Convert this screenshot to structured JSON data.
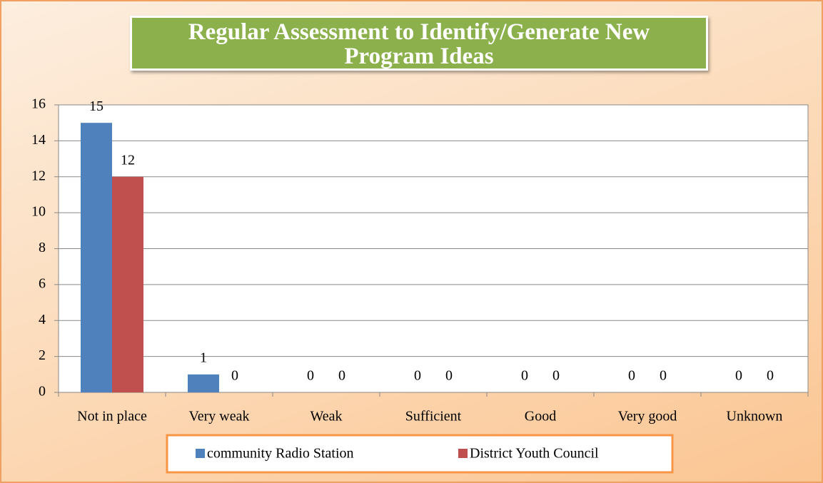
{
  "chart_data": {
    "type": "bar",
    "title": "Regular Assessment to Identify/Generate New\nProgram Ideas",
    "categories": [
      "Not in place",
      "Very weak",
      "Weak",
      "Sufficient",
      "Good",
      "Very good",
      "Unknown"
    ],
    "series": [
      {
        "name": "community Radio Station",
        "color": "#4f81bd",
        "values": [
          15,
          1,
          0,
          0,
          0,
          0,
          0
        ]
      },
      {
        "name": "District Youth Council",
        "color": "#c0504d",
        "values": [
          12,
          0,
          0,
          0,
          0,
          0,
          0
        ]
      }
    ],
    "ylim": [
      0,
      16
    ],
    "yticks": [
      0,
      2,
      4,
      6,
      8,
      10,
      12,
      14,
      16
    ],
    "grid": true,
    "legend": "bottom"
  }
}
